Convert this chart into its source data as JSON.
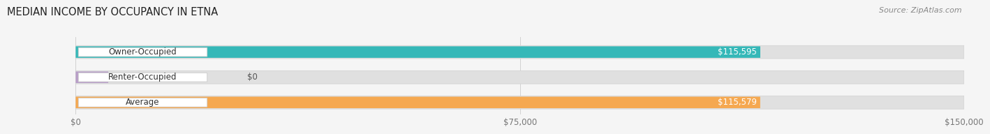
{
  "title": "MEDIAN INCOME BY OCCUPANCY IN ETNA",
  "source_text": "Source: ZipAtlas.com",
  "categories": [
    "Owner-Occupied",
    "Renter-Occupied",
    "Average"
  ],
  "values": [
    115595,
    0,
    115579
  ],
  "bar_colors": [
    "#35b8b8",
    "#b89ec8",
    "#f5a850"
  ],
  "bar_labels": [
    "$115,595",
    "$0",
    "$115,579"
  ],
  "track_color": "#e0e0e0",
  "track_edge_color": "#d0d0d0",
  "xlim": [
    0,
    150000
  ],
  "xticks": [
    0,
    75000,
    150000
  ],
  "xtick_labels": [
    "$0",
    "$75,000",
    "$150,000"
  ],
  "title_fontsize": 10.5,
  "bar_height": 0.52,
  "label_fontsize": 8.5,
  "value_fontsize": 8.5,
  "source_fontsize": 8,
  "bg_color": "#f5f5f5",
  "renter_bar_extra": 5500
}
